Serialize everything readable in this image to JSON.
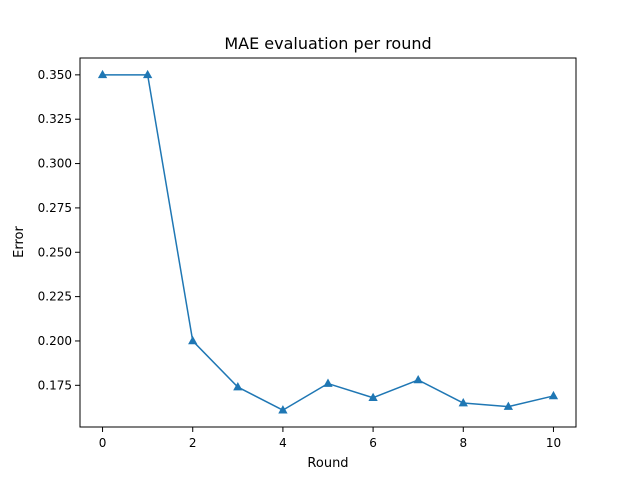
{
  "chart_data": {
    "type": "line",
    "title": "MAE evaluation per round",
    "xlabel": "Round",
    "ylabel": "Error",
    "x": [
      0,
      1,
      2,
      3,
      4,
      5,
      6,
      7,
      8,
      9,
      10
    ],
    "series": [
      {
        "values": [
          0.35,
          0.35,
          0.2,
          0.174,
          0.161,
          0.176,
          0.168,
          0.178,
          0.165,
          0.163,
          0.169
        ],
        "color": "#1f77b4",
        "marker": "triangle"
      }
    ],
    "xlim": [
      -0.5,
      10.5
    ],
    "ylim": [
      0.1515,
      0.3595
    ],
    "xticks": [
      0,
      2,
      4,
      6,
      8,
      10
    ],
    "xtick_labels": [
      "0",
      "2",
      "4",
      "6",
      "8",
      "10"
    ],
    "yticks": [
      0.175,
      0.2,
      0.225,
      0.25,
      0.275,
      0.3,
      0.325,
      0.35
    ],
    "ytick_labels": [
      "0.175",
      "0.200",
      "0.225",
      "0.250",
      "0.275",
      "0.300",
      "0.325",
      "0.350"
    ],
    "grid": false,
    "legend": "none"
  }
}
